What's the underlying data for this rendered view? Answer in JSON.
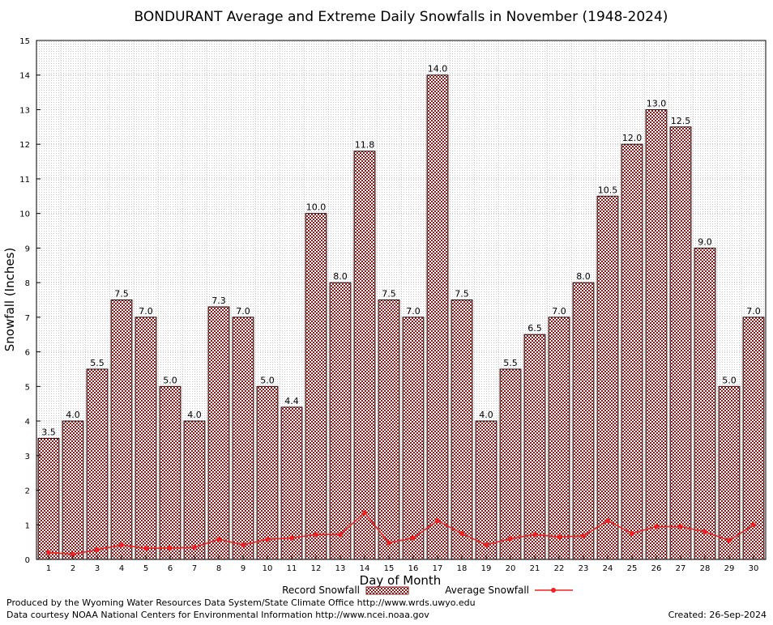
{
  "chart_data": {
    "type": "bar",
    "title": "BONDURANT Average and Extreme Daily Snowfalls in November (1948-2024)",
    "xlabel": "Day of Month",
    "ylabel": "Snowfall (Inches)",
    "ylim": [
      0,
      15
    ],
    "y_ticks": [
      "0",
      "1",
      "2",
      "3",
      "4",
      "5",
      "6",
      "7",
      "8",
      "9",
      "10",
      "11",
      "12",
      "13",
      "14",
      "15"
    ],
    "grid": true,
    "legend_position": "bottom",
    "categories": [
      "1",
      "2",
      "3",
      "4",
      "5",
      "6",
      "7",
      "8",
      "9",
      "10",
      "11",
      "12",
      "13",
      "14",
      "15",
      "16",
      "17",
      "18",
      "19",
      "20",
      "21",
      "22",
      "23",
      "24",
      "25",
      "26",
      "27",
      "28",
      "29",
      "30"
    ],
    "series": [
      {
        "name": "Record Snowfall",
        "type": "bar",
        "color": "#8b1a1a",
        "values": [
          3.5,
          4.0,
          5.5,
          7.5,
          7.0,
          5.0,
          4.0,
          7.3,
          7.0,
          5.0,
          4.4,
          10.0,
          8.0,
          11.8,
          7.5,
          7.0,
          14.0,
          7.5,
          4.0,
          5.5,
          6.5,
          7.0,
          8.0,
          10.5,
          12.0,
          13.0,
          12.5,
          9.0,
          5.0,
          7.0
        ],
        "labels": [
          "3.5",
          "4.0",
          "5.5",
          "7.5",
          "7.0",
          "5.0",
          "4.0",
          "7.3",
          "7.0",
          "5.0",
          "4.4",
          "10.0",
          "8.0",
          "11.8",
          "7.5",
          "7.0",
          "14.0",
          "7.5",
          "4.0",
          "5.5",
          "6.5",
          "7.0",
          "8.0",
          "10.5",
          "12.0",
          "13.0",
          "12.5",
          "9.0",
          "5.0",
          "7.0"
        ]
      },
      {
        "name": "Average Snowfall",
        "type": "line",
        "color": "#ee2222",
        "values": [
          0.2,
          0.15,
          0.28,
          0.42,
          0.32,
          0.33,
          0.35,
          0.58,
          0.42,
          0.58,
          0.62,
          0.72,
          0.72,
          1.35,
          0.48,
          0.62,
          1.12,
          0.75,
          0.42,
          0.6,
          0.72,
          0.65,
          0.68,
          1.12,
          0.75,
          0.95,
          0.95,
          0.8,
          0.55,
          1.0
        ]
      }
    ]
  },
  "footer": {
    "producer": "Produced by the Wyoming Water Resources Data System/State Climate Office http://www.wrds.uwyo.edu",
    "courtesy": "Data courtesy NOAA National Centers for Environmental Information http://www.ncei.noaa.gov",
    "created": "Created: 26-Sep-2024"
  }
}
